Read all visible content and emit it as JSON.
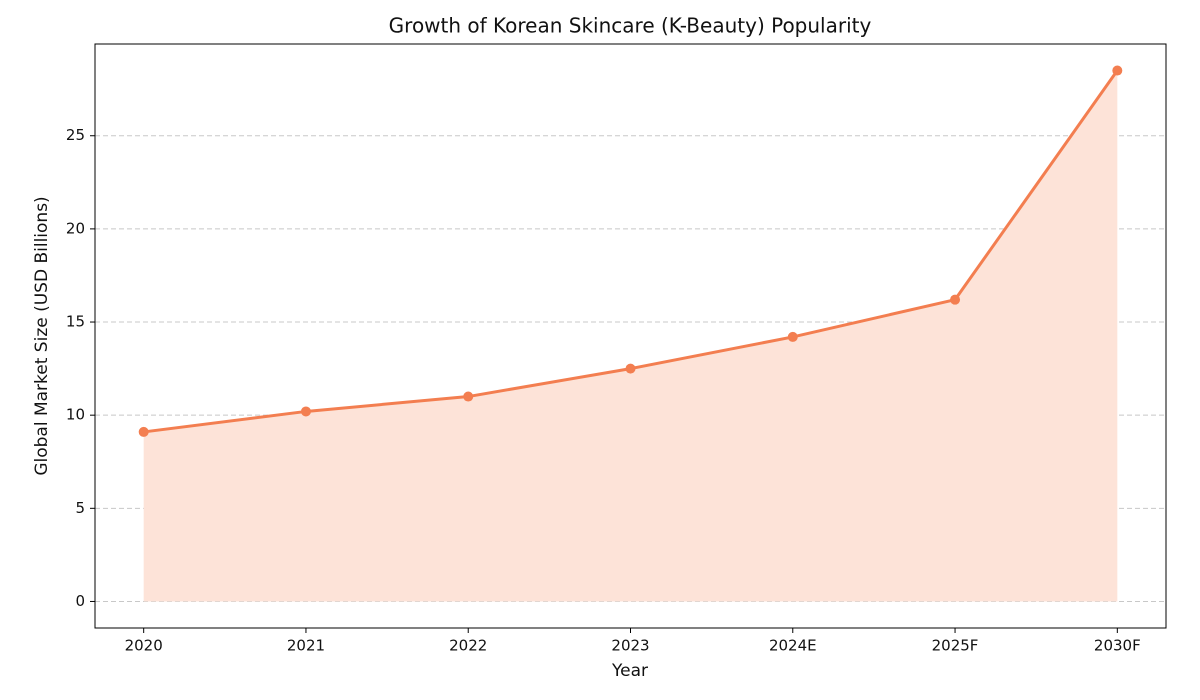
{
  "chart_data": {
    "type": "line",
    "title": "Growth of Korean Skincare (K-Beauty) Popularity",
    "xlabel": "Year",
    "ylabel": "Global Market Size (USD Billions)",
    "categories": [
      "2020",
      "2021",
      "2022",
      "2023",
      "2024E",
      "2025F",
      "2030F"
    ],
    "values": [
      9.1,
      10.2,
      11.0,
      12.5,
      14.2,
      16.2,
      28.5
    ],
    "color": "#f37e50",
    "area": true,
    "area_color": "#fde3d8",
    "ylim": [
      -1.425,
      29.925
    ],
    "yticks": [
      0,
      5,
      10,
      15,
      20,
      25
    ],
    "grid": true
  }
}
